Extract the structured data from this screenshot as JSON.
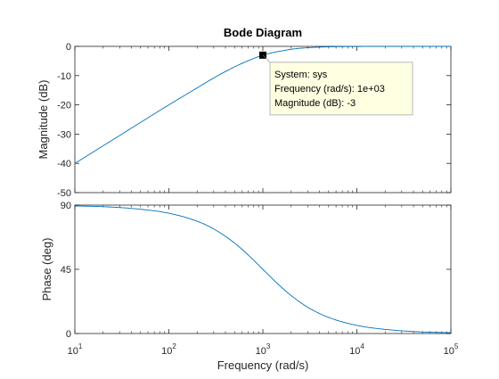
{
  "chart_data": {
    "type": "line",
    "title": "Bode Diagram",
    "xlabel": "Frequency  (rad/s)",
    "x_scale": "log",
    "xlim": [
      10,
      100000
    ],
    "x_ticks": [
      10,
      100,
      1000,
      10000,
      100000
    ],
    "x_tick_labels": [
      {
        "base": "10",
        "exp": "1"
      },
      {
        "base": "10",
        "exp": "2"
      },
      {
        "base": "10",
        "exp": "3"
      },
      {
        "base": "10",
        "exp": "4"
      },
      {
        "base": "10",
        "exp": "5"
      }
    ],
    "line_color": "#0072bd",
    "panels": [
      {
        "id": "magnitude",
        "ylabel": "Magnitude (dB)",
        "ylim": [
          -50,
          0
        ],
        "y_ticks": [
          -50,
          -40,
          -30,
          -20,
          -10,
          0
        ],
        "y_tick_labels": [
          "-50",
          "-40",
          "-30",
          "-20",
          "-10",
          "0"
        ],
        "series": [
          {
            "x": [
              10,
              20,
              50,
              100,
              200,
              300,
              500,
              700,
              1000,
              2000,
              3000,
              5000,
              10000,
              100000
            ],
            "y": [
              -40.0,
              -34.0,
              -26.0,
              -20.0,
              -14.2,
              -10.8,
              -7.0,
              -4.9,
              -3.0,
              -1.0,
              -0.46,
              -0.17,
              -0.04,
              0.0
            ]
          }
        ],
        "annotation": {
          "x": 1000,
          "y": -3,
          "lines": [
            "System: sys",
            "Frequency (rad/s): 1e+03",
            "Magnitude (dB): -3"
          ]
        }
      },
      {
        "id": "phase",
        "ylabel": "Phase (deg)",
        "ylim": [
          0,
          90
        ],
        "y_ticks": [
          0,
          45,
          90
        ],
        "y_tick_labels": [
          "0",
          "45",
          "90"
        ],
        "series": [
          {
            "x": [
              10,
              20,
              50,
              100,
              200,
              300,
              500,
              700,
              1000,
              1500,
              2000,
              3000,
              5000,
              10000,
              20000,
              50000,
              100000
            ],
            "y": [
              89.4,
              88.9,
              87.1,
              84.3,
              78.7,
              73.3,
              63.4,
              55.0,
              45.0,
              33.7,
              26.6,
              18.4,
              11.3,
              5.7,
              2.9,
              1.1,
              0.6
            ]
          }
        ]
      }
    ]
  }
}
